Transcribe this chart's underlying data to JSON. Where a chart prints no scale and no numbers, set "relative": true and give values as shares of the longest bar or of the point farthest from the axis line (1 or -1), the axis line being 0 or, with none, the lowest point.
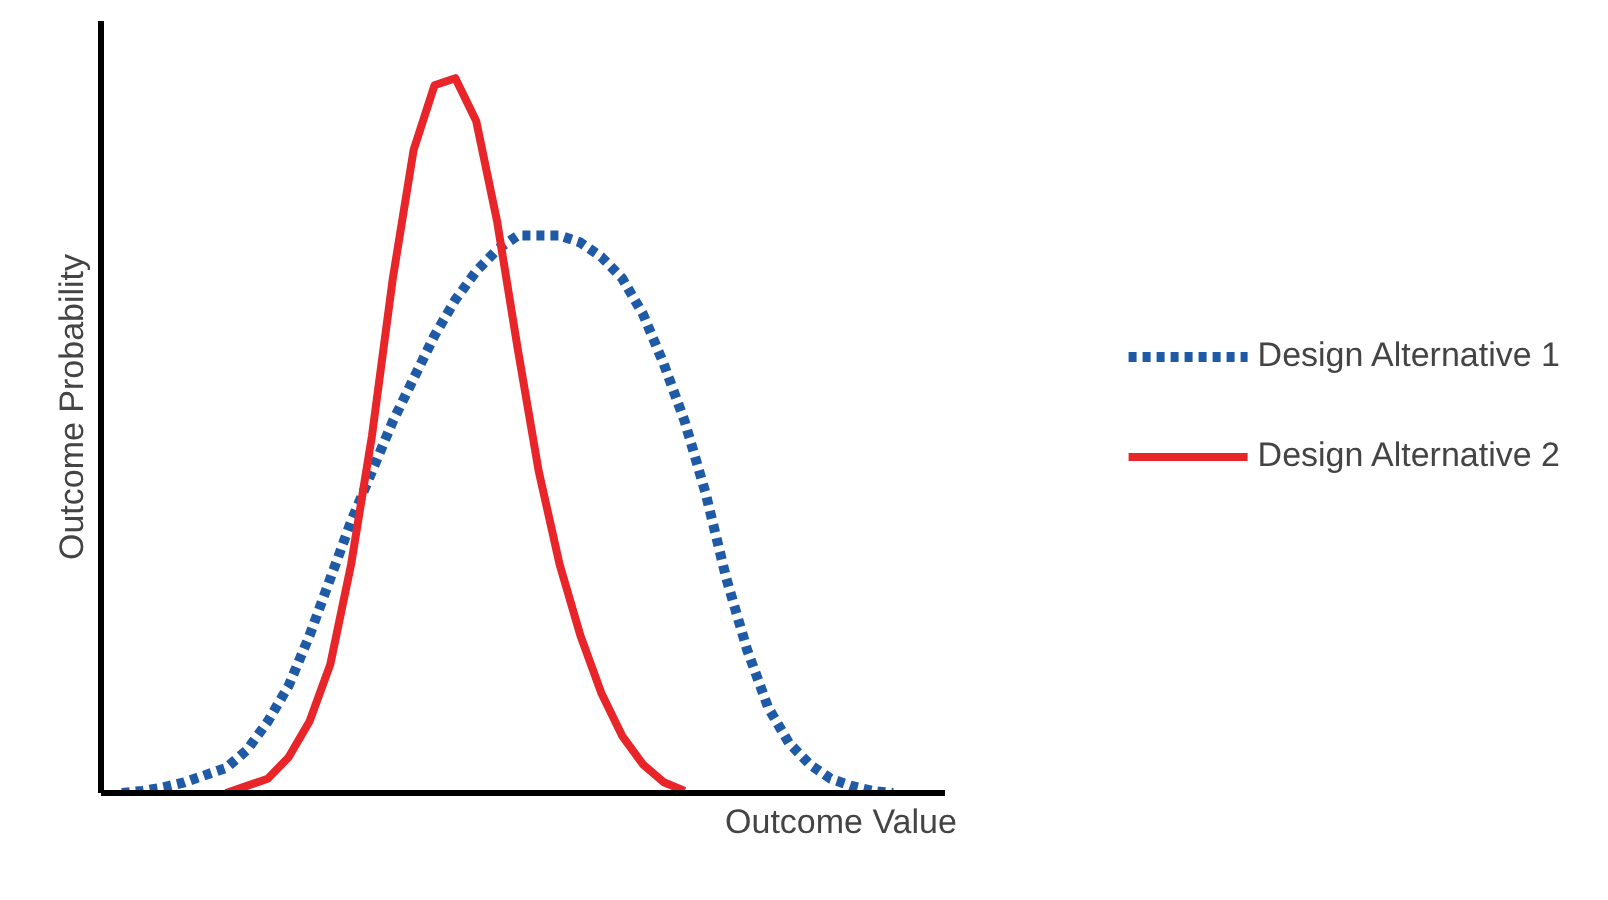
{
  "chart_data": {
    "type": "line",
    "relative": true,
    "xlabel": "Outcome Value",
    "ylabel": "Outcome Probability",
    "categories": [
      null,
      null,
      null,
      null,
      null,
      null,
      null,
      null,
      null,
      null,
      null,
      null,
      null,
      null,
      null,
      null,
      null,
      null,
      null,
      null,
      null,
      null,
      null,
      null,
      null,
      null,
      null,
      null,
      null,
      null,
      null,
      null,
      null,
      null,
      null,
      null,
      null,
      null
    ],
    "series": [
      {
        "name": "Design Alternative 1",
        "color": "#1f5aa6",
        "line_style": "dotted",
        "values": [
          0,
          0.003,
          0.008,
          0.015,
          0.025,
          0.035,
          0.06,
          0.1,
          0.15,
          0.22,
          0.3,
          0.38,
          0.45,
          0.52,
          0.58,
          0.64,
          0.69,
          0.73,
          0.76,
          0.78,
          0.78,
          0.78,
          0.77,
          0.75,
          0.72,
          0.67,
          0.6,
          0.52,
          0.42,
          0.3,
          0.2,
          0.12,
          0.07,
          0.04,
          0.02,
          0.01,
          0.003,
          0
        ]
      },
      {
        "name": "Design Alternative 2",
        "color": "#e8262a",
        "line_style": "solid",
        "values": [
          null,
          null,
          null,
          null,
          null,
          0,
          0.01,
          0.02,
          0.05,
          0.1,
          0.18,
          0.32,
          0.5,
          0.72,
          0.9,
          0.99,
          1.0,
          0.94,
          0.8,
          0.62,
          0.45,
          0.32,
          0.22,
          0.14,
          0.08,
          0.04,
          0.015,
          0.003,
          null,
          null,
          null,
          null,
          null,
          null,
          null,
          null,
          null,
          null
        ]
      }
    ],
    "legend": "right"
  }
}
